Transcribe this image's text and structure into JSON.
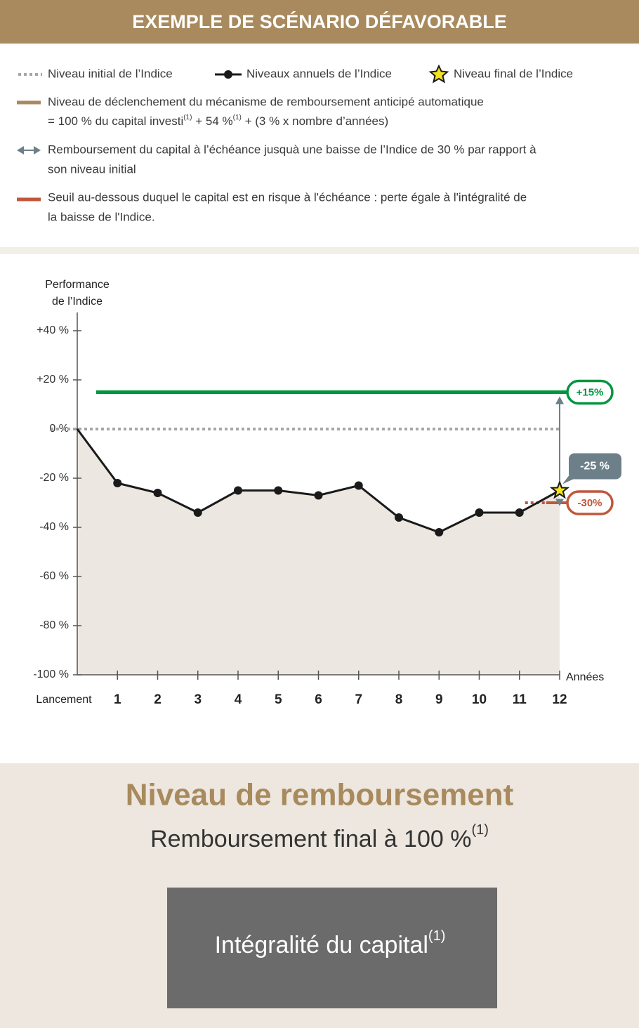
{
  "header": {
    "title": "EXEMPLE DE SCÉNARIO DÉFAVORABLE"
  },
  "chart_data": {
    "type": "line",
    "legend": {
      "initial": "Niveau initial de l’Indice",
      "final": "Niveau final de l’Indice",
      "trigger": [
        "Niveau de déclenchement du mécanisme de remboursement anticipé automatique",
        [
          "= 100 % du capital investi",
          "(1)",
          " + 54 %",
          "(1)",
          " + (3 % x nombre d’années)"
        ]
      ],
      "protection": [
        "Remboursement du capital à l’échéance jusquà une baisse de l’Indice de 30 % par rapport à",
        "son niveau initial"
      ],
      "barrier": [
        "Seuil au-dessous duquel le capital est en risque à l'échéance : perte égale à l'intégralité de",
        "la baisse de l'Indice."
      ]
    },
    "y_axis_title": [
      "Performance",
      "de l’Indice"
    ],
    "x_axis_title": "Années",
    "categories": [
      "Lancement",
      "1",
      "2",
      "3",
      "4",
      "5",
      "6",
      "7",
      "8",
      "9",
      "10",
      "11",
      "12"
    ],
    "series": [
      {
        "name": "Niveaux annuels de l’Indice",
        "color": "#1a1a1a",
        "values": [
          0,
          -22,
          -26,
          -34,
          -25,
          -25,
          -27,
          -23,
          -36,
          -42,
          -34,
          -34,
          -25
        ],
        "value_labels": [
          null,
          null,
          null,
          null,
          null,
          null,
          null,
          null,
          null,
          null,
          null,
          null,
          "-25 %"
        ],
        "final_marker": "star",
        "final_color": "#f4e41f"
      }
    ],
    "reference_lines": [
      {
        "value": 0,
        "color": "#a6a6a6",
        "style": "dotted"
      },
      {
        "value": 15,
        "label": "+15%",
        "color": "#00953f",
        "style": "solid"
      },
      {
        "value": -30,
        "label": "-30%",
        "color": "#c0573a",
        "style": "dotted-solid"
      }
    ],
    "ylim": [
      -100,
      40
    ],
    "yticks": [
      {
        "value": 40,
        "label": "+40 %"
      },
      {
        "value": 20,
        "label": "+20 %"
      },
      {
        "value": 0,
        "label": "0 %"
      },
      {
        "value": -20,
        "label": "-20 %"
      },
      {
        "value": -40,
        "label": "-40 %"
      },
      {
        "value": -60,
        "label": "-60 %"
      },
      {
        "value": -80,
        "label": "-80 %"
      },
      {
        "value": -100,
        "label": "-100 %"
      }
    ],
    "area_color": "#ece7e1"
  },
  "result": {
    "title": "Niveau de remboursement",
    "subtitle": [
      "Remboursement final à 100 %",
      "(1)"
    ],
    "box": [
      "Intégralité du capital",
      "(1)"
    ]
  }
}
